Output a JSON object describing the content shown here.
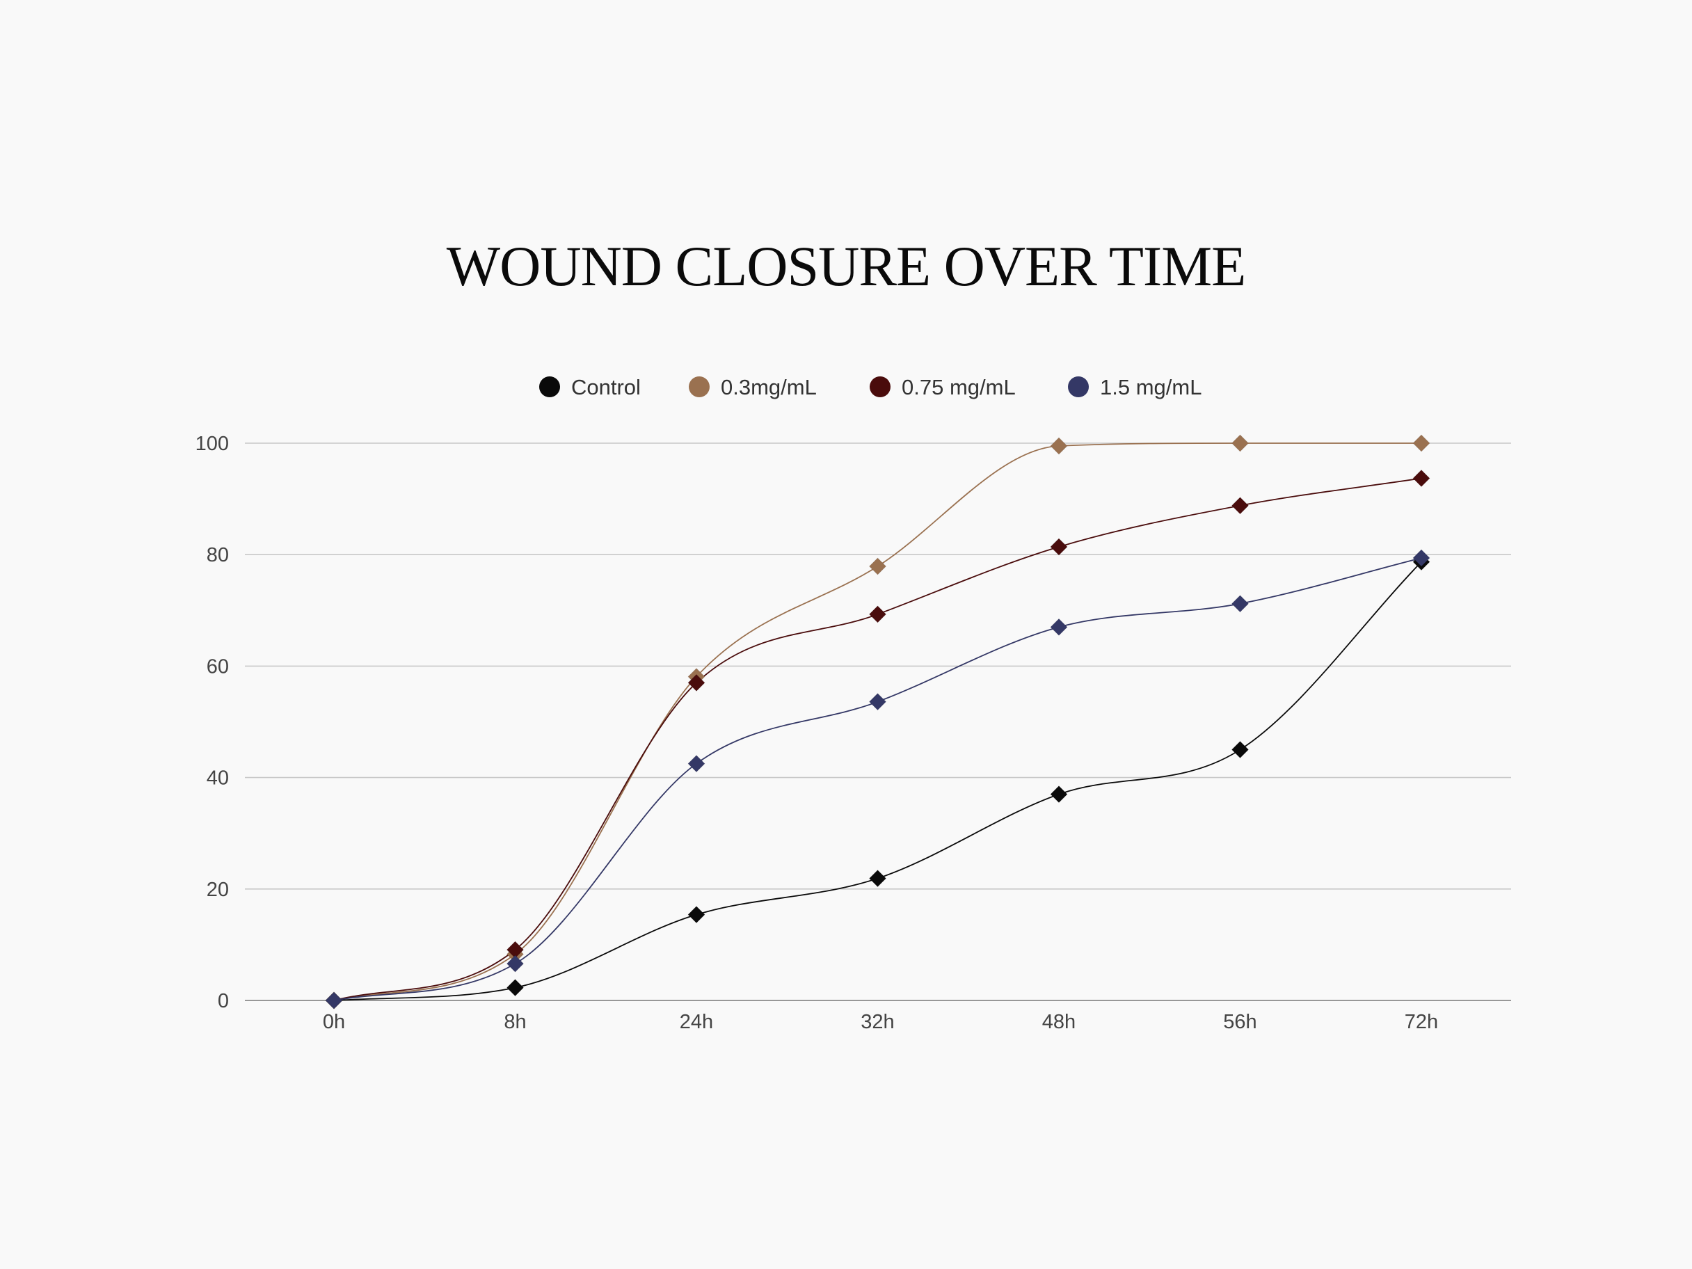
{
  "chart_data": {
    "type": "line",
    "title": "WOUND CLOSURE OVER TIME",
    "xlabel": "",
    "ylabel": "",
    "categories": [
      "0h",
      "8h",
      "24h",
      "32h",
      "48h",
      "56h",
      "72h"
    ],
    "ylim": [
      0,
      100
    ],
    "yticks": [
      0,
      20,
      40,
      60,
      80,
      100
    ],
    "grid": true,
    "legend_position": "top-center",
    "series": [
      {
        "name": "Control",
        "color": "#0a0a0a",
        "values": [
          0,
          2.3,
          15.4,
          21.9,
          37.0,
          45.0,
          78.7
        ]
      },
      {
        "name": "0.3mg/mL",
        "color": "#9a7150",
        "values": [
          0,
          8.3,
          58.1,
          77.9,
          99.5,
          100,
          100
        ]
      },
      {
        "name": "0.75 mg/mL",
        "color": "#4a0c0c",
        "values": [
          0,
          9.1,
          57.0,
          69.3,
          81.4,
          88.8,
          93.7
        ]
      },
      {
        "name": "1.5 mg/mL",
        "color": "#343866",
        "values": [
          0,
          6.6,
          42.5,
          53.6,
          67.0,
          71.2,
          79.4
        ]
      }
    ]
  }
}
